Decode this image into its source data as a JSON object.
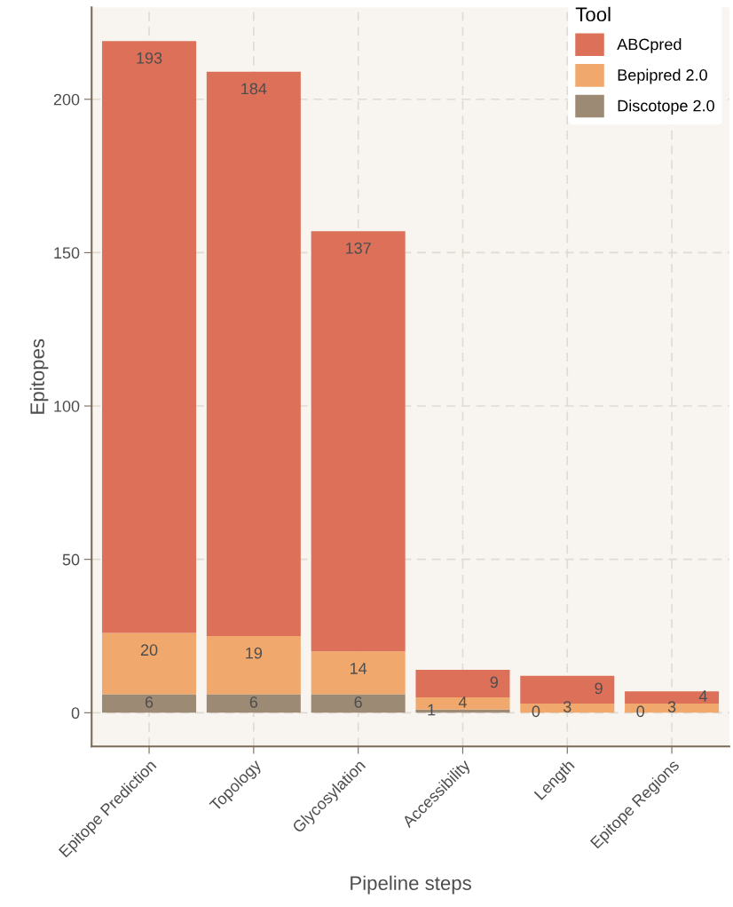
{
  "chart_data": {
    "type": "bar",
    "stacked": true,
    "xlabel": "Pipeline steps",
    "ylabel": "Epitopes",
    "legend_title": "Tool",
    "categories": [
      "Epitope Prediction",
      "Topology",
      "Glycosylation",
      "Accessibility",
      "Length",
      "Epitope Regions"
    ],
    "series": [
      {
        "name": "Discotope 2.0",
        "color": "#9c8a74",
        "values": [
          6,
          6,
          6,
          1,
          0,
          0
        ]
      },
      {
        "name": "Bepipred 2.0",
        "color": "#f0a86c",
        "values": [
          20,
          19,
          14,
          4,
          3,
          3
        ]
      },
      {
        "name": "ABCpred",
        "color": "#dc7059",
        "values": [
          193,
          184,
          137,
          9,
          9,
          4
        ]
      }
    ],
    "ylim": [
      -11,
      230
    ],
    "yticks": [
      0,
      50,
      100,
      150,
      200
    ],
    "grid": true,
    "legend": "top right",
    "data_labels": true
  }
}
